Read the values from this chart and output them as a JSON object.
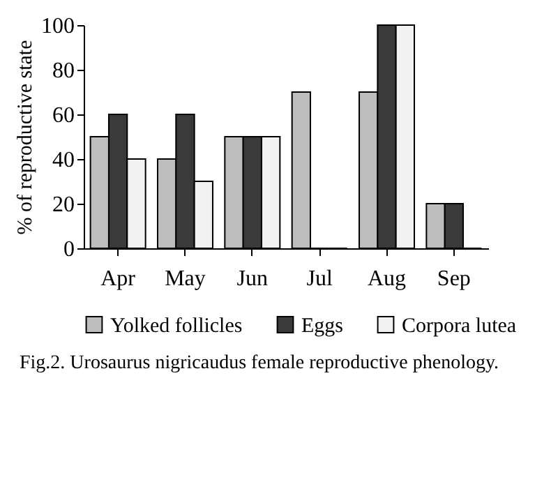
{
  "chart_data": {
    "type": "bar",
    "ylabel": "% of reproductive state",
    "categories": [
      "Apr",
      "May",
      "Jun",
      "Jul",
      "Aug",
      "Sep"
    ],
    "series": [
      {
        "name": "Yolked follicles",
        "color": "#bdbdbd",
        "values": [
          50,
          40,
          50,
          70,
          70,
          20
        ]
      },
      {
        "name": "Eggs",
        "color": "#3a3a3a",
        "values": [
          60,
          60,
          50,
          0,
          100,
          20
        ]
      },
      {
        "name": "Corpora lutea",
        "color": "#f2f2f2",
        "values": [
          40,
          30,
          50,
          0,
          100,
          0
        ]
      }
    ],
    "ylim": [
      0,
      100
    ],
    "yticks": [
      0,
      20,
      40,
      60,
      80,
      100
    ],
    "grid": false,
    "legend": "bottom",
    "annotations": [
      "Fig.2. Urosaurus nigricaudus female reproductive phenology."
    ]
  }
}
